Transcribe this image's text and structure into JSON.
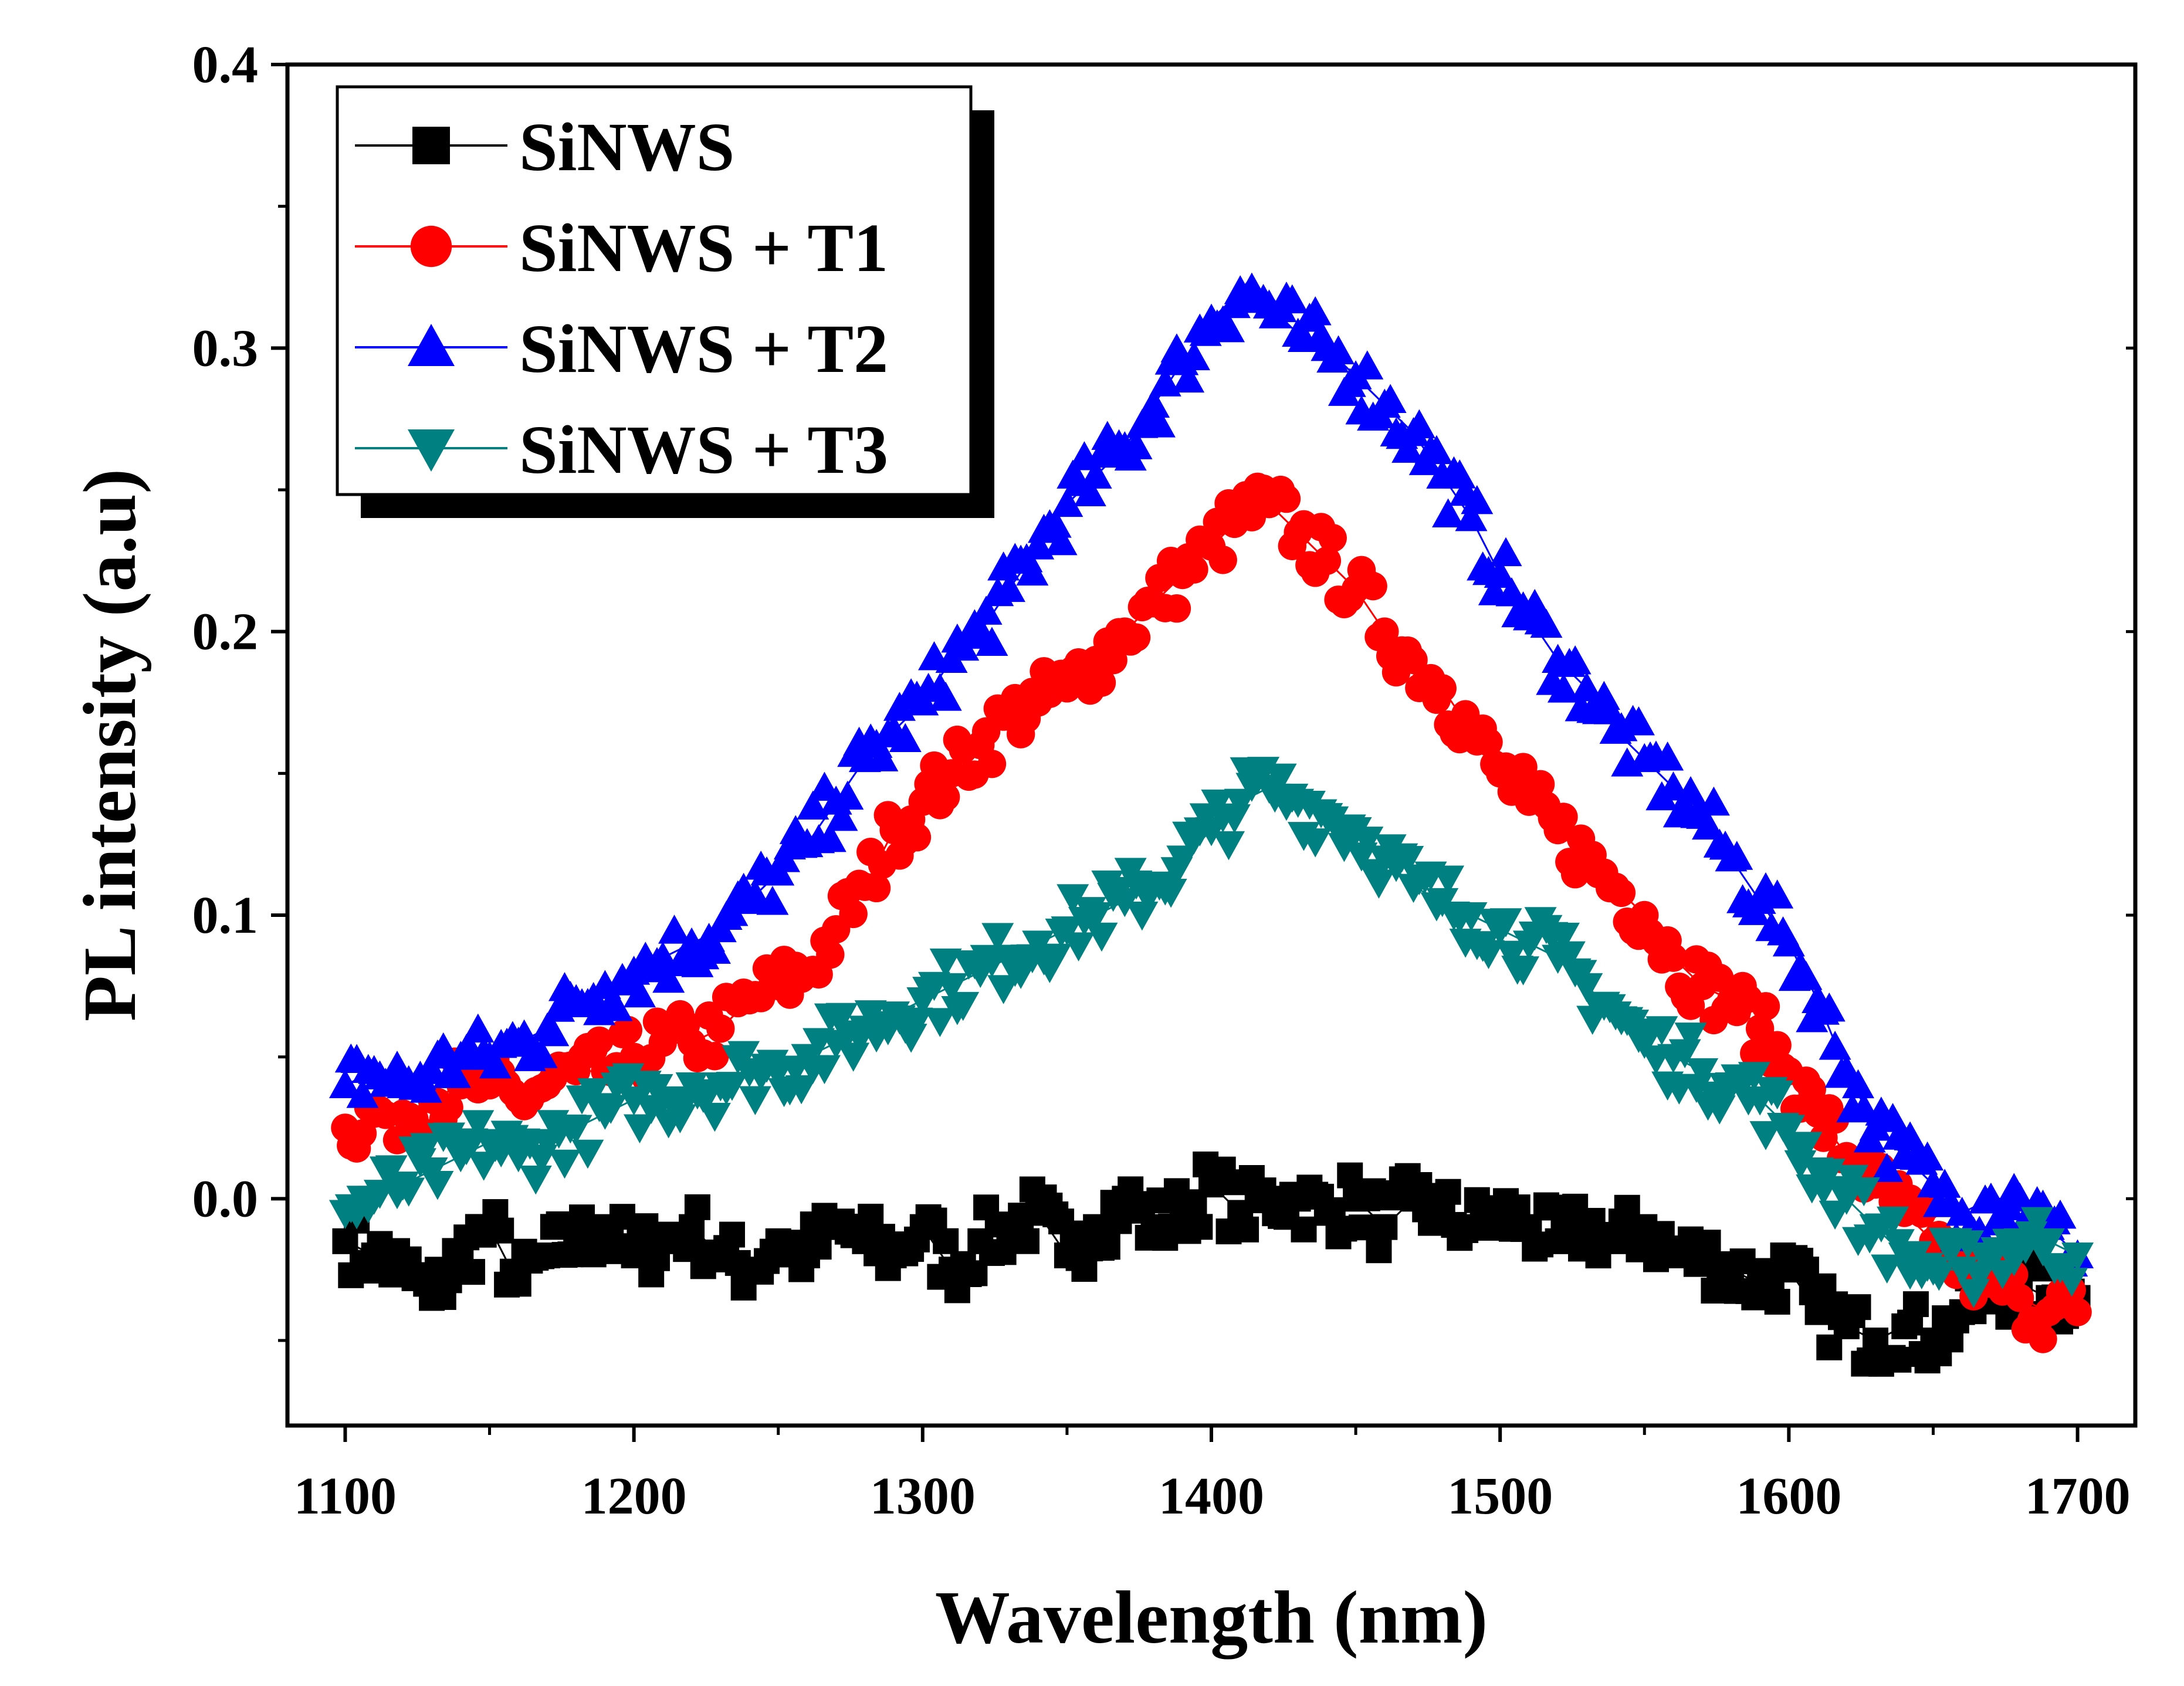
{
  "chart_data": {
    "type": "scatter",
    "title": "",
    "xlabel": "Wavelength (nm)",
    "ylabel": "PL intensity (a.u)",
    "xlim": [
      1080,
      1720
    ],
    "ylim": [
      -0.08,
      0.4
    ],
    "x_ticks": [
      1100,
      1200,
      1300,
      1400,
      1500,
      1600,
      1700
    ],
    "x_tick_labels": [
      "1100",
      "1200",
      "1300",
      "1400",
      "1500",
      "1600",
      "1700"
    ],
    "y_ticks": [
      0.0,
      0.1,
      0.2,
      0.3,
      0.4
    ],
    "y_tick_labels": [
      "0.0",
      "0.1",
      "0.2",
      "0.3",
      "0.4"
    ],
    "grid": false,
    "legend_position": "top-left",
    "series": [
      {
        "name": "SiNWS",
        "color": "#000000",
        "marker": "square",
        "x": [
          1100,
          1110,
          1120,
          1130,
          1140,
          1150,
          1160,
          1170,
          1180,
          1190,
          1200,
          1210,
          1220,
          1230,
          1240,
          1250,
          1260,
          1270,
          1280,
          1290,
          1300,
          1310,
          1320,
          1330,
          1340,
          1350,
          1360,
          1370,
          1380,
          1390,
          1400,
          1410,
          1420,
          1430,
          1440,
          1450,
          1460,
          1470,
          1480,
          1490,
          1500,
          1510,
          1520,
          1530,
          1540,
          1550,
          1560,
          1570,
          1580,
          1590,
          1600,
          1610,
          1620,
          1630,
          1640,
          1650,
          1660,
          1670,
          1680,
          1690,
          1700
        ],
        "values": [
          -0.015,
          -0.02,
          -0.025,
          -0.035,
          -0.02,
          -0.01,
          -0.03,
          -0.02,
          -0.015,
          -0.01,
          -0.02,
          -0.015,
          -0.01,
          -0.02,
          -0.025,
          -0.015,
          -0.02,
          -0.01,
          -0.015,
          -0.02,
          -0.01,
          -0.025,
          -0.015,
          -0.01,
          -0.005,
          -0.02,
          -0.01,
          0.0,
          -0.01,
          -0.005,
          0.005,
          -0.005,
          0.0,
          0.0,
          -0.005,
          0.0,
          -0.01,
          0.0,
          -0.005,
          -0.01,
          -0.005,
          -0.01,
          -0.015,
          -0.01,
          -0.015,
          -0.01,
          -0.02,
          -0.02,
          -0.025,
          -0.03,
          -0.025,
          -0.04,
          -0.045,
          -0.05,
          -0.045,
          -0.05,
          -0.04,
          -0.035,
          -0.03,
          -0.035,
          -0.035
        ]
      },
      {
        "name": "SiNWS + T1",
        "color": "#ff0000",
        "marker": "circle",
        "x": [
          1100,
          1110,
          1120,
          1130,
          1140,
          1150,
          1160,
          1170,
          1180,
          1190,
          1200,
          1210,
          1220,
          1230,
          1240,
          1250,
          1260,
          1270,
          1280,
          1290,
          1300,
          1310,
          1320,
          1330,
          1340,
          1350,
          1360,
          1370,
          1380,
          1390,
          1400,
          1410,
          1420,
          1430,
          1440,
          1450,
          1460,
          1470,
          1480,
          1490,
          1500,
          1510,
          1520,
          1530,
          1540,
          1550,
          1560,
          1570,
          1580,
          1590,
          1600,
          1610,
          1620,
          1630,
          1640,
          1650,
          1660,
          1670,
          1680,
          1690,
          1700
        ],
        "values": [
          0.025,
          0.03,
          0.03,
          0.035,
          0.04,
          0.04,
          0.035,
          0.04,
          0.045,
          0.045,
          0.05,
          0.055,
          0.055,
          0.06,
          0.07,
          0.075,
          0.08,
          0.095,
          0.11,
          0.13,
          0.14,
          0.15,
          0.16,
          0.17,
          0.175,
          0.18,
          0.19,
          0.2,
          0.21,
          0.22,
          0.23,
          0.24,
          0.245,
          0.235,
          0.225,
          0.215,
          0.2,
          0.19,
          0.18,
          0.165,
          0.15,
          0.14,
          0.13,
          0.12,
          0.11,
          0.1,
          0.085,
          0.075,
          0.07,
          0.06,
          0.045,
          0.03,
          0.015,
          0.005,
          -0.005,
          -0.015,
          -0.025,
          -0.03,
          -0.035,
          -0.04,
          -0.04
        ]
      },
      {
        "name": "SiNWS + T2",
        "color": "#0000ff",
        "marker": "triangle-up",
        "x": [
          1100,
          1110,
          1120,
          1130,
          1140,
          1150,
          1160,
          1170,
          1180,
          1190,
          1200,
          1210,
          1220,
          1230,
          1240,
          1250,
          1260,
          1270,
          1280,
          1290,
          1300,
          1310,
          1320,
          1330,
          1340,
          1350,
          1360,
          1370,
          1380,
          1390,
          1400,
          1410,
          1420,
          1430,
          1440,
          1450,
          1460,
          1470,
          1480,
          1490,
          1500,
          1510,
          1520,
          1530,
          1540,
          1550,
          1560,
          1570,
          1580,
          1590,
          1600,
          1610,
          1620,
          1630,
          1640,
          1650,
          1660,
          1670,
          1680,
          1690,
          1700
        ],
        "values": [
          0.04,
          0.045,
          0.04,
          0.045,
          0.05,
          0.05,
          0.055,
          0.06,
          0.07,
          0.075,
          0.08,
          0.085,
          0.09,
          0.095,
          0.105,
          0.115,
          0.125,
          0.14,
          0.155,
          0.165,
          0.175,
          0.19,
          0.2,
          0.215,
          0.23,
          0.245,
          0.255,
          0.265,
          0.28,
          0.295,
          0.31,
          0.32,
          0.315,
          0.305,
          0.3,
          0.29,
          0.28,
          0.27,
          0.255,
          0.24,
          0.22,
          0.205,
          0.19,
          0.18,
          0.165,
          0.155,
          0.145,
          0.135,
          0.12,
          0.105,
          0.09,
          0.07,
          0.045,
          0.025,
          0.015,
          0.005,
          -0.005,
          0.0,
          0.0,
          -0.01,
          -0.02
        ]
      },
      {
        "name": "SiNWS + T3",
        "color": "#008080",
        "marker": "triangle-down",
        "x": [
          1100,
          1110,
          1120,
          1130,
          1140,
          1150,
          1160,
          1170,
          1180,
          1190,
          1200,
          1210,
          1220,
          1230,
          1240,
          1250,
          1260,
          1270,
          1280,
          1290,
          1300,
          1310,
          1320,
          1330,
          1340,
          1350,
          1360,
          1370,
          1380,
          1390,
          1400,
          1410,
          1420,
          1430,
          1440,
          1450,
          1460,
          1470,
          1480,
          1490,
          1500,
          1510,
          1520,
          1530,
          1540,
          1550,
          1560,
          1570,
          1580,
          1590,
          1600,
          1610,
          1620,
          1630,
          1640,
          1650,
          1660,
          1670,
          1680,
          1690,
          1700
        ],
        "values": [
          -0.005,
          0.0,
          0.005,
          0.01,
          0.015,
          0.02,
          0.015,
          0.02,
          0.025,
          0.03,
          0.035,
          0.035,
          0.04,
          0.04,
          0.045,
          0.045,
          0.05,
          0.055,
          0.06,
          0.065,
          0.07,
          0.075,
          0.08,
          0.085,
          0.09,
          0.095,
          0.1,
          0.105,
          0.11,
          0.12,
          0.13,
          0.14,
          0.145,
          0.14,
          0.135,
          0.13,
          0.12,
          0.11,
          0.105,
          0.1,
          0.095,
          0.09,
          0.085,
          0.075,
          0.065,
          0.055,
          0.05,
          0.045,
          0.04,
          0.035,
          0.025,
          0.01,
          0.0,
          -0.01,
          -0.02,
          -0.025,
          -0.025,
          -0.02,
          -0.015,
          -0.015,
          -0.02
        ]
      }
    ]
  }
}
